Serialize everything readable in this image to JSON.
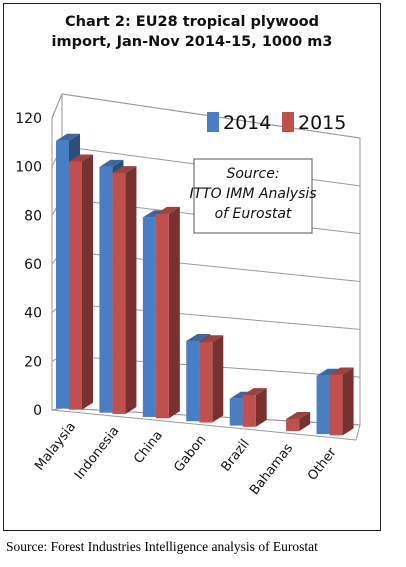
{
  "chart_data": {
    "type": "bar",
    "title_line1": "Chart 2: EU28 tropical plywood",
    "title_line2": "import, Jan-Nov 2014-15, 1000 m3",
    "categories": [
      "Malaysia",
      "Indonesia",
      "China",
      "Gabon",
      "Brazil",
      "Bahamas",
      "Other"
    ],
    "series": [
      {
        "name": "2014",
        "color": "#4a7ec4",
        "values": [
          110,
          101,
          82,
          33,
          11,
          0,
          24
        ]
      },
      {
        "name": "2015",
        "color": "#c0504d",
        "values": [
          102,
          99,
          84,
          33,
          13,
          5,
          25
        ]
      }
    ],
    "ylim": [
      0,
      120
    ],
    "yticks": [
      "0",
      "20",
      "40",
      "60",
      "80",
      "100",
      "120"
    ],
    "grid": true,
    "legend": "top-right",
    "annotation_lines": [
      "Source:",
      "ITTO IMM Analysis",
      "of Eurostat"
    ]
  },
  "caption": "Source: Forest Industries Intelligence analysis of Eurostat"
}
